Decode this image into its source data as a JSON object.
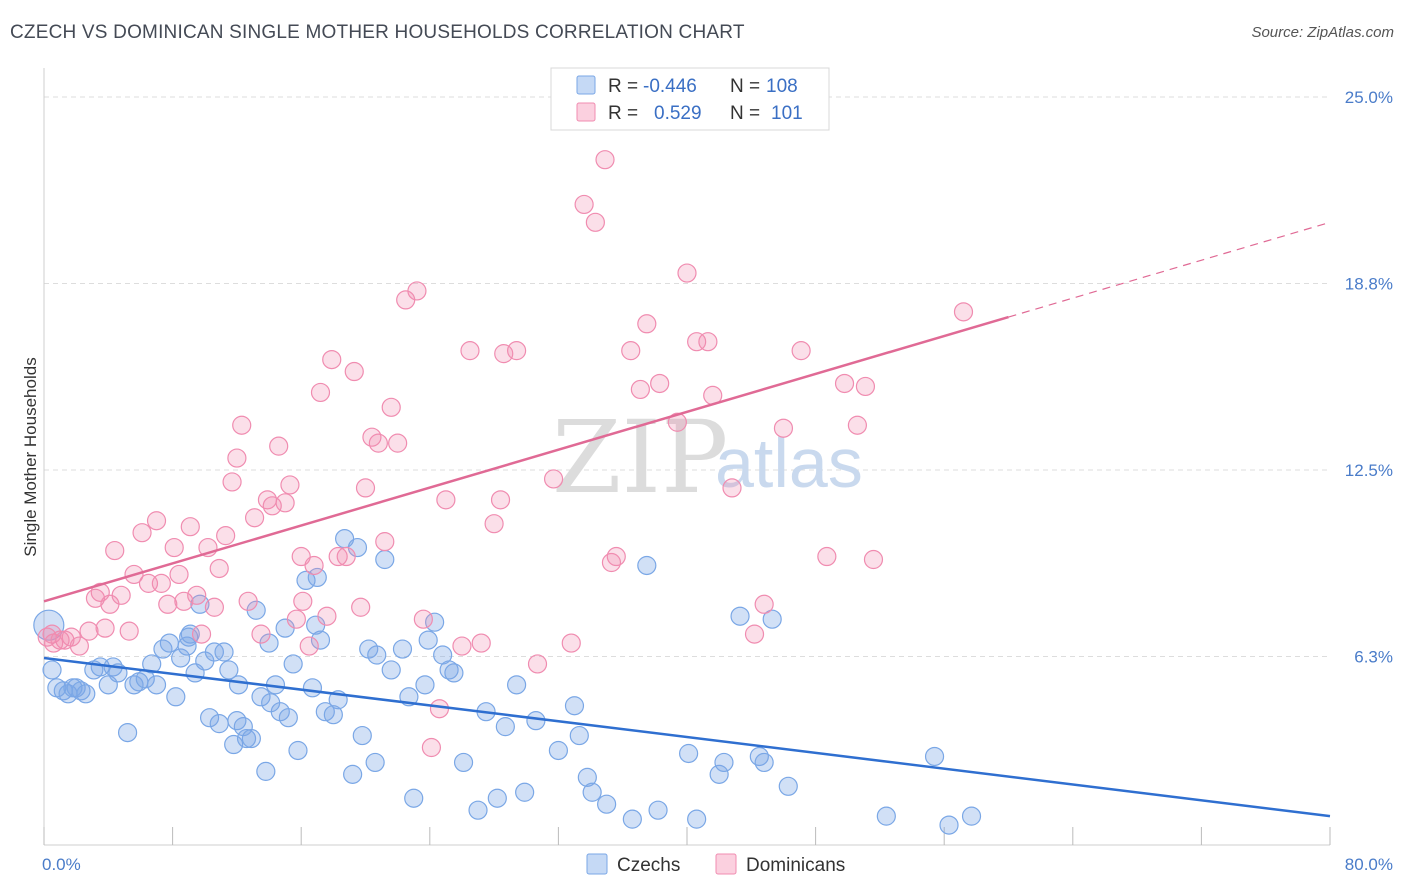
{
  "title": "CZECH VS DOMINICAN SINGLE MOTHER HOUSEHOLDS CORRELATION CHART",
  "source": "Source: ZipAtlas.com",
  "watermark": {
    "zip": "ZIP",
    "atlas": "atlas"
  },
  "legend": {
    "rows": [
      {
        "r_label": "R =",
        "r_value": "-0.446",
        "n_label": "N =",
        "n_value": "108",
        "color": "#7aa7e6"
      },
      {
        "r_label": "R =",
        "r_value": "0.529",
        "n_label": "N =",
        "n_value": "101",
        "color": "#f08cb0"
      }
    ]
  },
  "bottom_legend": [
    {
      "label": "Czechs",
      "color": "#7aa7e6"
    },
    {
      "label": "Dominicans",
      "color": "#f08cb0"
    }
  ],
  "chart_data": {
    "type": "scatter",
    "title": "CZECH VS DOMINICAN SINGLE MOTHER HOUSEHOLDS CORRELATION CHART",
    "xlabel": "",
    "ylabel": "Single Mother Households",
    "xlim": [
      0,
      80
    ],
    "ylim": [
      0,
      25
    ],
    "x_tick_labels": [
      "0.0%",
      "80.0%"
    ],
    "y_tick_labels": [
      "6.3%",
      "12.5%",
      "18.8%",
      "25.0%"
    ],
    "y_tick_values": [
      6.25,
      12.5,
      18.75,
      25.0
    ],
    "grid": true,
    "legend_position": "top-center",
    "series": [
      {
        "name": "Czechs",
        "color": "#7aa7e6",
        "line_color": "#2f6fd0",
        "trend": {
          "x0": 0,
          "y0": 6.2,
          "x1": 80,
          "y1": 0.9,
          "dashed_from": null
        },
        "points": [
          [
            0.3,
            7.3
          ],
          [
            0.5,
            5.8
          ],
          [
            0.8,
            5.2
          ],
          [
            1.2,
            5.1
          ],
          [
            1.5,
            5.0
          ],
          [
            1.8,
            5.2
          ],
          [
            2.0,
            5.2
          ],
          [
            2.3,
            5.1
          ],
          [
            2.6,
            5.0
          ],
          [
            3.1,
            5.8
          ],
          [
            3.5,
            5.9
          ],
          [
            4.0,
            5.3
          ],
          [
            4.3,
            5.9
          ],
          [
            4.6,
            5.7
          ],
          [
            5.2,
            3.7
          ],
          [
            5.6,
            5.3
          ],
          [
            5.9,
            5.4
          ],
          [
            6.3,
            5.5
          ],
          [
            6.7,
            6.0
          ],
          [
            7.0,
            5.3
          ],
          [
            7.4,
            6.5
          ],
          [
            7.8,
            6.7
          ],
          [
            8.2,
            4.9
          ],
          [
            8.5,
            6.2
          ],
          [
            8.9,
            6.6
          ],
          [
            9.1,
            7.0
          ],
          [
            9.4,
            5.7
          ],
          [
            9.7,
            8.0
          ],
          [
            10.0,
            6.1
          ],
          [
            10.3,
            4.2
          ],
          [
            10.6,
            6.4
          ],
          [
            10.9,
            4.0
          ],
          [
            11.2,
            6.4
          ],
          [
            11.5,
            5.8
          ],
          [
            11.8,
            3.3
          ],
          [
            12.1,
            5.3
          ],
          [
            12.4,
            3.9
          ],
          [
            12.6,
            3.5
          ],
          [
            12.9,
            3.5
          ],
          [
            13.2,
            7.8
          ],
          [
            13.5,
            4.9
          ],
          [
            13.8,
            2.4
          ],
          [
            14.0,
            6.7
          ],
          [
            14.4,
            5.3
          ],
          [
            14.7,
            4.4
          ],
          [
            15.0,
            7.2
          ],
          [
            15.2,
            4.2
          ],
          [
            15.5,
            6.0
          ],
          [
            15.8,
            3.1
          ],
          [
            16.3,
            8.8
          ],
          [
            16.7,
            5.2
          ],
          [
            17.0,
            8.9
          ],
          [
            17.2,
            6.8
          ],
          [
            17.5,
            4.4
          ],
          [
            18.0,
            4.3
          ],
          [
            18.3,
            4.8
          ],
          [
            18.7,
            10.2
          ],
          [
            19.2,
            2.3
          ],
          [
            19.5,
            9.9
          ],
          [
            19.8,
            3.6
          ],
          [
            20.2,
            6.5
          ],
          [
            20.6,
            2.7
          ],
          [
            21.2,
            9.5
          ],
          [
            21.6,
            5.8
          ],
          [
            22.3,
            6.5
          ],
          [
            22.7,
            4.9
          ],
          [
            23.0,
            1.5
          ],
          [
            23.7,
            5.3
          ],
          [
            24.3,
            7.4
          ],
          [
            24.8,
            6.3
          ],
          [
            25.2,
            5.8
          ],
          [
            25.5,
            5.7
          ],
          [
            26.1,
            2.7
          ],
          [
            27.0,
            1.1
          ],
          [
            27.5,
            4.4
          ],
          [
            28.2,
            1.5
          ],
          [
            28.7,
            3.9
          ],
          [
            29.4,
            5.3
          ],
          [
            29.9,
            1.7
          ],
          [
            30.6,
            4.1
          ],
          [
            32.0,
            3.1
          ],
          [
            33.0,
            4.6
          ],
          [
            33.3,
            3.6
          ],
          [
            33.8,
            2.2
          ],
          [
            34.1,
            1.7
          ],
          [
            35.0,
            1.3
          ],
          [
            36.6,
            0.8
          ],
          [
            37.5,
            9.3
          ],
          [
            38.2,
            1.1
          ],
          [
            40.1,
            3.0
          ],
          [
            40.6,
            0.8
          ],
          [
            42.0,
            2.3
          ],
          [
            42.3,
            2.7
          ],
          [
            43.3,
            7.6
          ],
          [
            44.5,
            2.9
          ],
          [
            44.8,
            2.7
          ],
          [
            45.3,
            7.5
          ],
          [
            46.3,
            1.9
          ],
          [
            52.4,
            0.9
          ],
          [
            55.4,
            2.9
          ],
          [
            56.3,
            0.6
          ],
          [
            57.7,
            0.9
          ],
          [
            9.0,
            6.9
          ],
          [
            12.0,
            4.1
          ],
          [
            14.1,
            4.7
          ],
          [
            20.7,
            6.3
          ],
          [
            16.9,
            7.3
          ],
          [
            23.9,
            6.8
          ]
        ]
      },
      {
        "name": "Dominicans",
        "color": "#f08cb0",
        "line_color": "#e06a95",
        "trend": {
          "x0": 0,
          "y0": 8.1,
          "x1": 80,
          "y1": 20.8,
          "dashed_from": 60
        },
        "points": [
          [
            0.2,
            6.9
          ],
          [
            0.6,
            6.7
          ],
          [
            1.0,
            6.8
          ],
          [
            1.3,
            6.8
          ],
          [
            1.7,
            6.9
          ],
          [
            2.2,
            6.6
          ],
          [
            2.8,
            7.1
          ],
          [
            3.2,
            8.2
          ],
          [
            3.5,
            8.4
          ],
          [
            3.8,
            7.2
          ],
          [
            4.1,
            8.0
          ],
          [
            4.4,
            9.8
          ],
          [
            4.8,
            8.3
          ],
          [
            5.3,
            7.1
          ],
          [
            5.6,
            9.0
          ],
          [
            6.1,
            10.4
          ],
          [
            6.5,
            8.7
          ],
          [
            7.0,
            10.8
          ],
          [
            7.3,
            8.7
          ],
          [
            7.7,
            8.0
          ],
          [
            8.1,
            9.9
          ],
          [
            8.4,
            9.0
          ],
          [
            8.7,
            8.1
          ],
          [
            9.1,
            10.6
          ],
          [
            9.5,
            8.3
          ],
          [
            9.8,
            7.0
          ],
          [
            10.2,
            9.9
          ],
          [
            10.6,
            7.9
          ],
          [
            10.9,
            9.2
          ],
          [
            11.3,
            10.3
          ],
          [
            11.7,
            12.1
          ],
          [
            12.0,
            12.9
          ],
          [
            12.3,
            14.0
          ],
          [
            12.7,
            8.1
          ],
          [
            13.1,
            10.9
          ],
          [
            13.5,
            7.0
          ],
          [
            13.9,
            11.5
          ],
          [
            14.2,
            11.3
          ],
          [
            14.6,
            13.3
          ],
          [
            15.0,
            11.4
          ],
          [
            15.3,
            12.0
          ],
          [
            15.7,
            7.5
          ],
          [
            16.1,
            8.1
          ],
          [
            16.5,
            6.6
          ],
          [
            16.8,
            9.3
          ],
          [
            17.2,
            15.1
          ],
          [
            17.6,
            7.6
          ],
          [
            17.9,
            16.2
          ],
          [
            18.3,
            9.6
          ],
          [
            18.8,
            9.6
          ],
          [
            19.3,
            15.8
          ],
          [
            19.7,
            7.9
          ],
          [
            20.0,
            11.9
          ],
          [
            20.4,
            13.6
          ],
          [
            20.8,
            13.4
          ],
          [
            21.2,
            10.1
          ],
          [
            21.6,
            14.6
          ],
          [
            22.0,
            13.4
          ],
          [
            22.5,
            18.2
          ],
          [
            23.2,
            18.5
          ],
          [
            23.6,
            7.5
          ],
          [
            24.1,
            3.2
          ],
          [
            24.6,
            4.5
          ],
          [
            25.0,
            11.5
          ],
          [
            26.0,
            6.6
          ],
          [
            26.5,
            16.5
          ],
          [
            27.2,
            6.7
          ],
          [
            28.0,
            10.7
          ],
          [
            28.6,
            16.4
          ],
          [
            29.4,
            16.5
          ],
          [
            30.7,
            6.0
          ],
          [
            31.7,
            12.2
          ],
          [
            32.8,
            6.7
          ],
          [
            33.6,
            21.4
          ],
          [
            34.3,
            20.8
          ],
          [
            34.9,
            22.9
          ],
          [
            35.3,
            9.4
          ],
          [
            35.6,
            9.6
          ],
          [
            36.5,
            16.5
          ],
          [
            37.1,
            15.2
          ],
          [
            37.5,
            17.4
          ],
          [
            38.3,
            15.4
          ],
          [
            39.4,
            14.1
          ],
          [
            40.0,
            19.1
          ],
          [
            40.6,
            16.8
          ],
          [
            41.3,
            16.8
          ],
          [
            41.6,
            15.0
          ],
          [
            42.8,
            11.9
          ],
          [
            44.2,
            7.0
          ],
          [
            44.8,
            8.0
          ],
          [
            46.0,
            13.9
          ],
          [
            47.1,
            16.5
          ],
          [
            48.7,
            9.6
          ],
          [
            49.8,
            15.4
          ],
          [
            50.6,
            14.0
          ],
          [
            51.1,
            15.3
          ],
          [
            51.6,
            9.5
          ],
          [
            57.2,
            17.8
          ],
          [
            16.0,
            9.6
          ],
          [
            28.4,
            11.5
          ],
          [
            0.5,
            7.0
          ]
        ]
      }
    ]
  }
}
